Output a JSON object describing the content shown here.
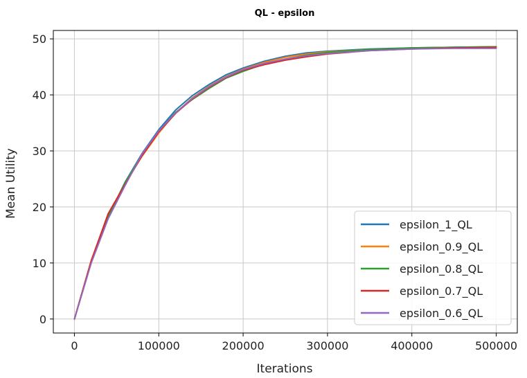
{
  "chart_data": {
    "type": "line",
    "title": "QL - epsilon",
    "xlabel": "Iterations",
    "ylabel": "Mean Utility",
    "xlim": [
      -25000,
      525000
    ],
    "ylim": [
      -2.5,
      51.5
    ],
    "xticks": [
      0,
      100000,
      200000,
      300000,
      400000,
      500000
    ],
    "xtick_labels": [
      "0",
      "100000",
      "200000",
      "300000",
      "400000",
      "500000"
    ],
    "yticks": [
      0,
      10,
      20,
      30,
      40,
      50
    ],
    "ytick_labels": [
      "0",
      "10",
      "20",
      "30",
      "40",
      "50"
    ],
    "grid": true,
    "legend_position": "lower-right",
    "x": [
      0,
      20000,
      40000,
      60000,
      80000,
      100000,
      120000,
      140000,
      160000,
      180000,
      200000,
      225000,
      250000,
      275000,
      300000,
      350000,
      400000,
      450000,
      500000
    ],
    "series": [
      {
        "name": "epsilon_1_QL",
        "color": "#1f77b4",
        "values": [
          0,
          10.3,
          18.3,
          24.4,
          29.5,
          33.8,
          37.3,
          39.9,
          41.9,
          43.6,
          44.8,
          46.0,
          46.9,
          47.5,
          47.8,
          48.2,
          48.4,
          48.5,
          48.6
        ]
      },
      {
        "name": "epsilon_0.9_QL",
        "color": "#ff7f0e",
        "values": [
          0,
          10.5,
          18.6,
          24.2,
          29.0,
          33.2,
          36.8,
          39.5,
          41.6,
          43.3,
          44.6,
          45.8,
          46.7,
          47.3,
          47.7,
          48.1,
          48.3,
          48.4,
          48.4
        ]
      },
      {
        "name": "epsilon_0.8_QL",
        "color": "#2ca02c",
        "values": [
          0,
          10.2,
          18.2,
          24.3,
          29.3,
          33.5,
          36.9,
          39.2,
          41.2,
          43.0,
          44.2,
          45.5,
          46.4,
          47.1,
          47.6,
          48.1,
          48.4,
          48.5,
          48.6
        ]
      },
      {
        "name": "epsilon_0.7_QL",
        "color": "#d62728",
        "values": [
          0,
          10.4,
          18.8,
          24.0,
          29.1,
          33.4,
          36.7,
          39.3,
          41.4,
          43.1,
          44.4,
          45.4,
          46.2,
          46.8,
          47.3,
          47.9,
          48.2,
          48.4,
          48.5
        ]
      },
      {
        "name": "epsilon_0.6_QL",
        "color": "#9467bd",
        "values": [
          0,
          10.0,
          17.9,
          23.8,
          29.4,
          33.6,
          36.8,
          39.4,
          41.5,
          43.2,
          44.5,
          45.6,
          46.4,
          47.0,
          47.4,
          47.9,
          48.2,
          48.3,
          48.3
        ]
      }
    ]
  }
}
